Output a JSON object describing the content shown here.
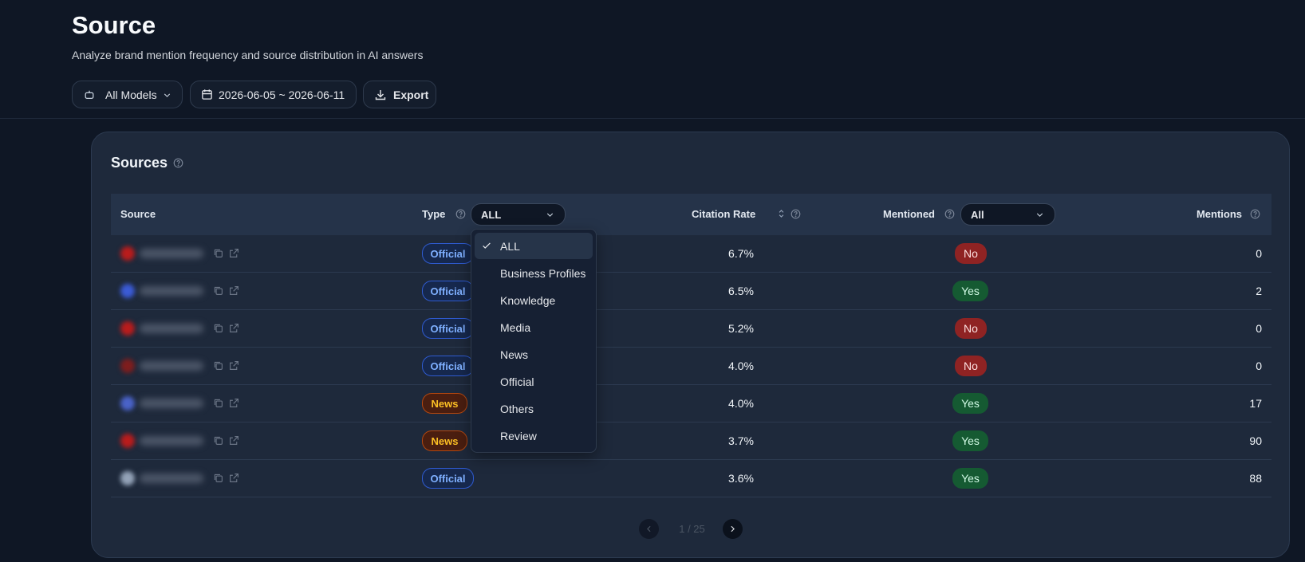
{
  "header": {
    "title": "Source",
    "subtitle": "Analyze brand mention frequency and source distribution in AI answers"
  },
  "filters": {
    "model": "All Models",
    "date_range": "2026-06-05 ~ 2026-06-11",
    "export": "Export"
  },
  "card": {
    "title": "Sources"
  },
  "table": {
    "columns": [
      "Source",
      "Type",
      "Citation Rate",
      "Mentioned",
      "Mentions"
    ],
    "type_filter": "ALL",
    "mentioned_filter": "All",
    "rows": [
      [
        "Official",
        "6.7%",
        "No",
        0
      ],
      [
        "Official",
        "6.5%",
        "Yes",
        2
      ],
      [
        "Official",
        "5.2%",
        "No",
        0
      ],
      [
        "Official",
        "4.0%",
        "No",
        0
      ],
      [
        "News",
        "4.0%",
        "Yes",
        17
      ],
      [
        "News",
        "3.7%",
        "Yes",
        90
      ],
      [
        "Official",
        "3.6%",
        "Yes",
        88
      ]
    ]
  },
  "type_dropdown": {
    "options": [
      "ALL",
      "Business Profiles",
      "Knowledge",
      "Media",
      "News",
      "Official",
      "Others",
      "Review"
    ],
    "selected": 0
  },
  "pagination": {
    "label": "1 / 25"
  }
}
